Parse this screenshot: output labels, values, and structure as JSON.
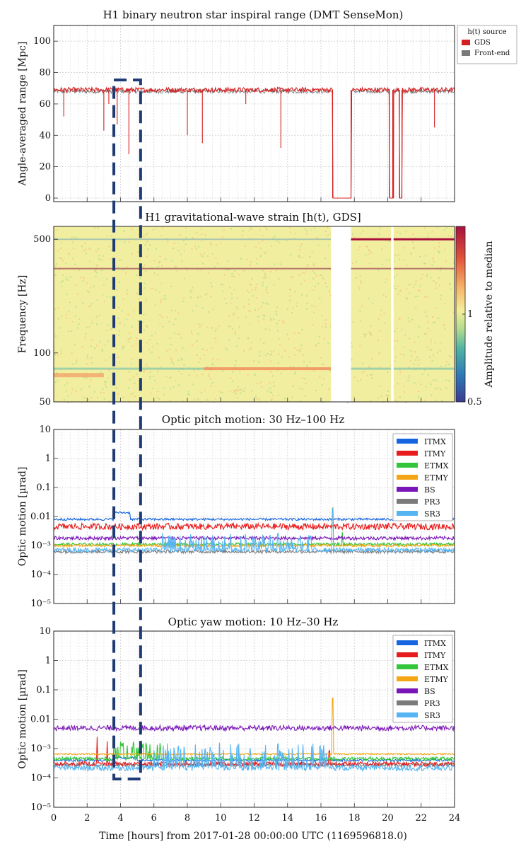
{
  "colors": {
    "ITMX": "#1565e0",
    "ITMY": "#e81c1c",
    "ETMX": "#33c53a",
    "ETMY": "#f5a614",
    "BS": "#7a16b8",
    "PR3": "#7b7b7b",
    "SR3": "#55b4f2",
    "GDS": "#d42020",
    "Front-end": "#7a7a7a",
    "highlight": "#1f3b73"
  },
  "xaxis": {
    "label": "Time [hours] from 2017-01-28 00:00:00 UTC (1169596818.0)",
    "range": [
      0,
      24
    ],
    "ticks": [
      "0",
      "2",
      "4",
      "6",
      "8",
      "10",
      "12",
      "14",
      "16",
      "18",
      "20",
      "22",
      "24"
    ]
  },
  "highlight_window_hours": [
    3.6,
    5.2
  ],
  "chart_data": [
    {
      "type": "line",
      "title": "H1 binary neutron star inspiral range (DMT SenseMon)",
      "ylabel": "Angle-averaged range [Mpc]",
      "ylim": [
        0,
        110
      ],
      "yticks": [
        "0",
        "20",
        "40",
        "60",
        "80",
        "100"
      ],
      "legend": {
        "title": "h(t) source",
        "placement": "top-right",
        "entries": [
          "GDS",
          "Front-end"
        ]
      },
      "series": [
        {
          "name": "GDS",
          "baseline": 69,
          "dropouts": [
            [
              16.7,
              17.8,
              0
            ],
            [
              20.1,
              20.3,
              0
            ],
            [
              20.3,
              20.35,
              0
            ],
            [
              20.7,
              20.85,
              0
            ]
          ],
          "dips": [
            [
              0.6,
              52
            ],
            [
              3.0,
              43
            ],
            [
              3.3,
              60
            ],
            [
              3.8,
              47
            ],
            [
              4.5,
              28
            ],
            [
              8.0,
              40
            ],
            [
              8.9,
              35
            ],
            [
              11.5,
              60
            ],
            [
              13.6,
              32
            ],
            [
              22.8,
              45
            ]
          ]
        },
        {
          "name": "Front-end",
          "baseline": 68
        }
      ]
    },
    {
      "type": "heatmap",
      "title": "H1 gravitational-wave strain [h(t), GDS]",
      "ylabel": "Frequency [Hz]",
      "yscale": "log",
      "ylim": [
        50,
        600
      ],
      "yticks": [
        "50",
        "100",
        "500"
      ],
      "colorbar": {
        "label": "Amplitude relative to median",
        "range": [
          0.5,
          2.0
        ],
        "ticks": [
          "0.5",
          "1"
        ]
      },
      "gaps_hours": [
        [
          16.6,
          17.8
        ],
        [
          20.2,
          20.35
        ]
      ],
      "lines_hz": [
        500,
        330,
        80,
        73
      ]
    },
    {
      "type": "line",
      "title": "Optic pitch motion: 30 Hz–100 Hz",
      "ylabel": "Optic motion [µrad]",
      "yscale": "log",
      "ylim": [
        1e-05,
        10
      ],
      "yticks": [
        "10",
        "1",
        "0.1",
        "0.01",
        "10⁻³",
        "10⁻⁴",
        "10⁻⁵"
      ],
      "legend": {
        "placement": "top-right",
        "entries": [
          "ITMX",
          "ITMY",
          "ETMX",
          "ETMY",
          "BS",
          "PR3",
          "SR3"
        ]
      },
      "series": [
        {
          "name": "ITMX",
          "level": 0.008
        },
        {
          "name": "ITMY",
          "level": 0.0045
        },
        {
          "name": "ETMX",
          "level": 0.0011
        },
        {
          "name": "ETMY",
          "level": 0.001
        },
        {
          "name": "BS",
          "level": 0.0018
        },
        {
          "name": "PR3",
          "level": 0.00062
        },
        {
          "name": "SR3",
          "level": 0.0007
        }
      ]
    },
    {
      "type": "line",
      "title": "Optic yaw motion: 10 Hz–30 Hz",
      "ylabel": "Optic motion [µrad]",
      "yscale": "log",
      "ylim": [
        1e-05,
        10
      ],
      "yticks": [
        "10",
        "1",
        "0.1",
        "0.01",
        "10⁻³",
        "10⁻⁴",
        "10⁻⁵"
      ],
      "legend": {
        "placement": "top-right",
        "entries": [
          "ITMX",
          "ITMY",
          "ETMX",
          "ETMY",
          "BS",
          "PR3",
          "SR3"
        ]
      },
      "series": [
        {
          "name": "ITMX",
          "level": 0.0004
        },
        {
          "name": "ITMY",
          "level": 0.0003
        },
        {
          "name": "ETMX",
          "level": 0.00045
        },
        {
          "name": "ETMY",
          "level": 0.00065
        },
        {
          "name": "BS",
          "level": 0.005
        },
        {
          "name": "PR3",
          "level": 0.00028
        },
        {
          "name": "SR3",
          "level": 0.00022
        }
      ]
    }
  ]
}
